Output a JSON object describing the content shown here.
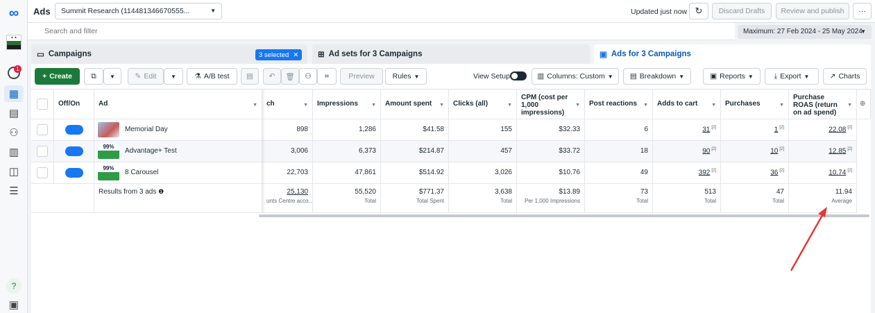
{
  "topbar": {
    "title": "Ads",
    "account": "Summit Research (114481346670555...",
    "updated": "Updated just now",
    "discard": "Discard Drafts",
    "review": "Review and publish",
    "more": "···"
  },
  "search": {
    "placeholder": "Search and filter"
  },
  "date_range": "Maximum: 27 Feb 2024 - 25 May 2024",
  "nav": {
    "notif_count": "1"
  },
  "tabs": {
    "campaigns": "Campaigns",
    "selected": "3 selected",
    "adsets": "Ad sets for 3 Campaigns",
    "ads": "Ads for 3 Campaigns"
  },
  "toolbar": {
    "create": "Create",
    "edit": "Edit",
    "ab_test": "A/B test",
    "preview": "Preview",
    "rules": "Rules",
    "view_setup": "View Setup",
    "columns": "Columns: Custom",
    "breakdown": "Breakdown",
    "reports": "Reports",
    "export": "Export",
    "charts": "Charts"
  },
  "table": {
    "headers": {
      "onoff": "Off/On",
      "ad": "Ad",
      "reach": "ch",
      "impressions": "Impressions",
      "amount": "Amount spent",
      "clicks": "Clicks (all)",
      "cpm": "CPM (cost per 1,000 impressions)",
      "reactions": "Post reactions",
      "cart": "Adds to cart",
      "purchases": "Purchases",
      "roas": "Purchase ROAS (return on ad spend)"
    },
    "rows": [
      {
        "name": "Memorial Day",
        "thumb": "",
        "reach": "898",
        "impressions": "1,286",
        "amount": "$41.58",
        "clicks": "155",
        "cpm": "$32.33",
        "reactions": "6",
        "cart": "31",
        "purchases": "1",
        "roas": "22.08",
        "sup": "[2]"
      },
      {
        "name": "Advantage+ Test",
        "thumb": "99%",
        "reach": "3,006",
        "impressions": "6,373",
        "amount": "$214.87",
        "clicks": "457",
        "cpm": "$33.72",
        "reactions": "18",
        "cart": "90",
        "purchases": "10",
        "roas": "12.85",
        "sup": "[2]"
      },
      {
        "name": "8 Carousel",
        "thumb": "99%",
        "reach": "22,703",
        "impressions": "47,861",
        "amount": "$514.92",
        "clicks": "3,026",
        "cpm": "$10.76",
        "reactions": "49",
        "cart": "392",
        "purchases": "36",
        "roas": "10.74",
        "sup": "[2]"
      }
    ],
    "summary": {
      "label": "Results from 3 ads",
      "reach": "25,130",
      "reach_sub": "unts Centre acco...",
      "impressions": "55,520",
      "impressions_sub": "Total",
      "amount": "$771.37",
      "amount_sub": "Total Spent",
      "clicks": "3,638",
      "clicks_sub": "Total",
      "cpm": "$13.89",
      "cpm_sub": "Per 1,000 Impressions",
      "reactions": "73",
      "reactions_sub": "Total",
      "cart": "513",
      "cart_sub": "Total",
      "purchases": "47",
      "purchases_sub": "Total",
      "roas": "11.94",
      "roas_sub": "Average"
    }
  },
  "annotation_color": "#e53935"
}
